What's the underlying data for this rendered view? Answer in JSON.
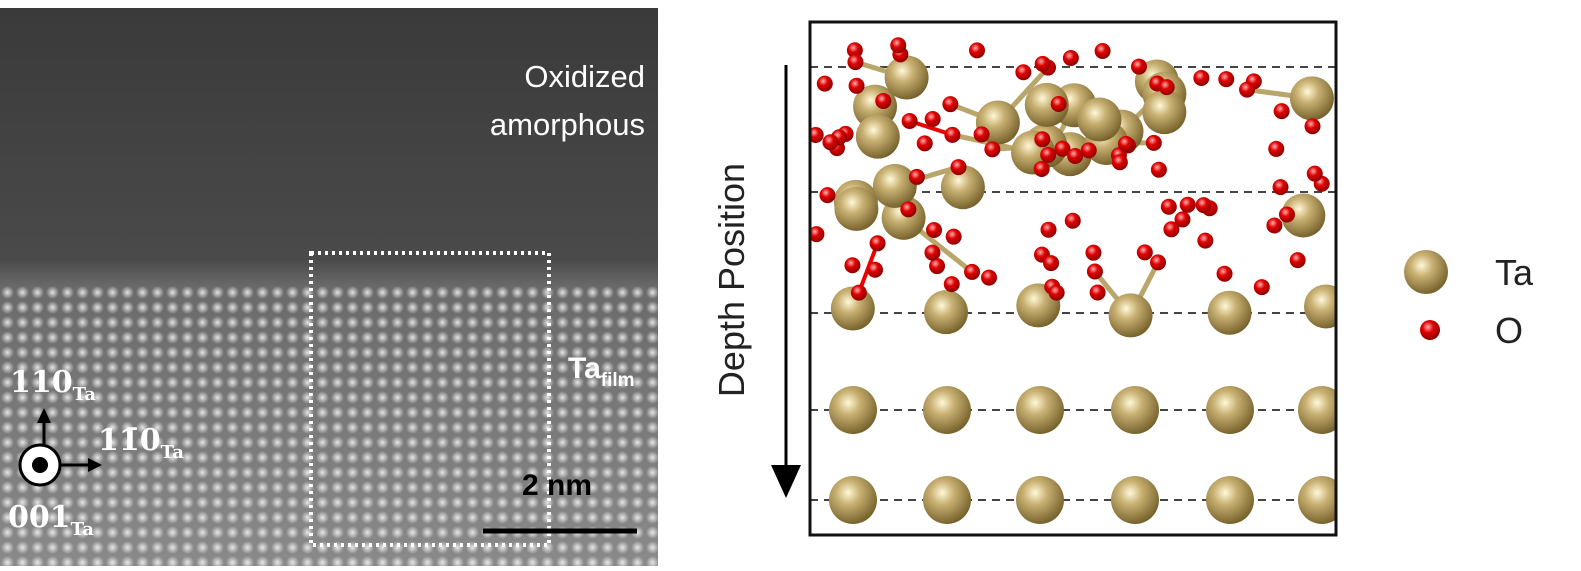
{
  "stem_image": {
    "region_label": [
      "Oxidized",
      "amorphous"
    ],
    "film_label": {
      "main": "Ta",
      "sub": "film"
    },
    "directions": [
      {
        "main": "110",
        "sub": "Ta"
      },
      {
        "main": "11̄0",
        "sub": "Ta"
      },
      {
        "main": "001",
        "sub": "Ta"
      }
    ],
    "scale_bar": "2 nm"
  },
  "model": {
    "axis_label": "Depth Position"
  },
  "legend": [
    {
      "label": "Ta"
    },
    {
      "label": "O"
    }
  ]
}
